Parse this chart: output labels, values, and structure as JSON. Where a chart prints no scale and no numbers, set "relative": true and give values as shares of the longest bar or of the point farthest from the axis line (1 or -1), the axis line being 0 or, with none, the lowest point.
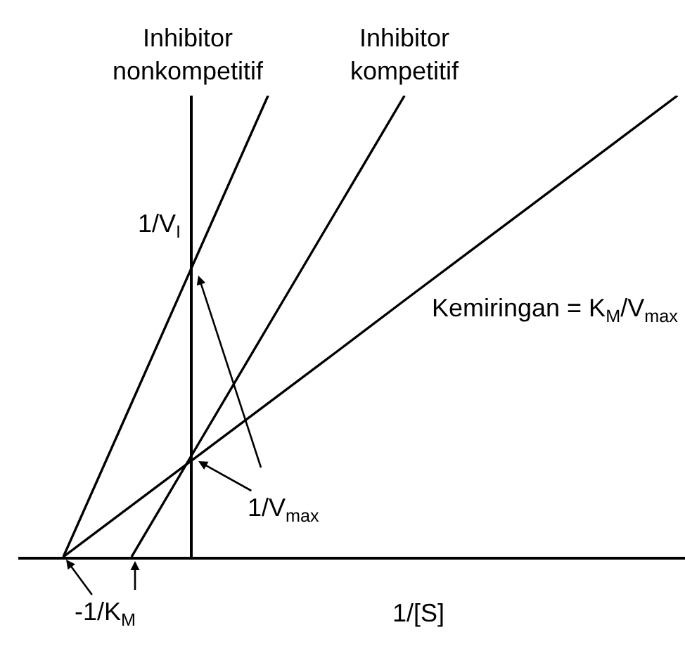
{
  "chart_data": {
    "type": "line",
    "relative": true,
    "categories": [
      null,
      null,
      null,
      null,
      null,
      null,
      null,
      null,
      null,
      null
    ],
    "xlabel": "1/[S]",
    "series": [
      {
        "name": "Inhibitor nonkompetitif",
        "color": "#000000",
        "values": [
          0,
          0.333,
          0.667,
          1,
          null,
          null,
          null,
          null,
          null,
          null
        ]
      },
      {
        "name": "Inhibitor kompetitif",
        "color": "#000000",
        "values": [
          null,
          0,
          0.25,
          0.5,
          0.75,
          1,
          null,
          null,
          null,
          null
        ]
      },
      {
        "color": "#000000",
        "values": [
          0,
          0.111,
          0.222,
          0.333,
          0.444,
          0.556,
          0.667,
          0.778,
          0.889,
          1
        ]
      }
    ],
    "annotations": [
      "1/V$_{I}$",
      "1/V$_{max}$",
      "-1/K$_{M}$",
      "Kemiringan = K$_{M}$/V$_{max}$"
    ]
  }
}
